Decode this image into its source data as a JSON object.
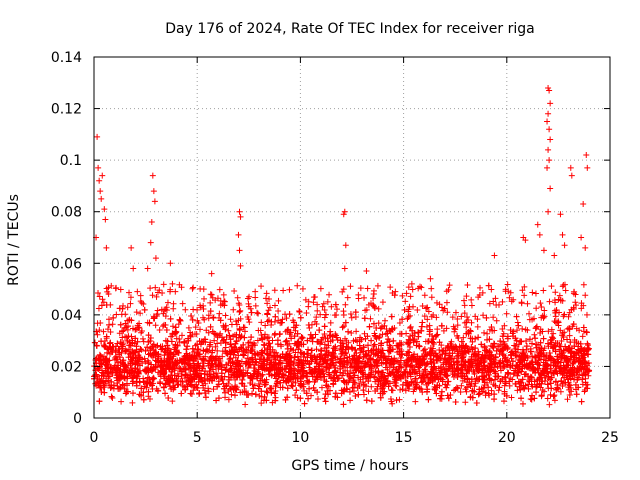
{
  "chart_data": {
    "type": "scatter",
    "title": "Day 176 of 2024, Rate Of TEC Index for receiver riga",
    "xlabel": "GPS time / hours",
    "ylabel": "ROTI / TECUs",
    "xlim": [
      0,
      25
    ],
    "ylim": [
      0,
      0.14
    ],
    "xticks": [
      0,
      5,
      10,
      15,
      20,
      25
    ],
    "xtick_labels": [
      "0",
      "5",
      "10",
      "15",
      "20",
      "25"
    ],
    "yticks": [
      0,
      0.02,
      0.04,
      0.06,
      0.08,
      0.1,
      0.12,
      0.14
    ],
    "ytick_labels": [
      "0",
      "0.02",
      "0.04",
      "0.06",
      "0.08",
      "0.1",
      "0.12",
      "0.14"
    ],
    "grid": true,
    "marker": "+",
    "color": "#ff0000",
    "series": [
      {
        "name": "ROTI",
        "x_range": [
          0,
          24
        ],
        "base_band": [
          0.008,
          0.035
        ],
        "typical": 0.02,
        "outliers": [
          {
            "x": 0.15,
            "y": 0.109
          },
          {
            "x": 0.2,
            "y": 0.097
          },
          {
            "x": 0.25,
            "y": 0.092
          },
          {
            "x": 0.3,
            "y": 0.088
          },
          {
            "x": 0.35,
            "y": 0.085
          },
          {
            "x": 0.4,
            "y": 0.094
          },
          {
            "x": 0.5,
            "y": 0.081
          },
          {
            "x": 0.55,
            "y": 0.077
          },
          {
            "x": 0.1,
            "y": 0.07
          },
          {
            "x": 0.6,
            "y": 0.066
          },
          {
            "x": 1.8,
            "y": 0.066
          },
          {
            "x": 1.9,
            "y": 0.058
          },
          {
            "x": 2.1,
            "y": 0.049
          },
          {
            "x": 2.6,
            "y": 0.058
          },
          {
            "x": 2.75,
            "y": 0.068
          },
          {
            "x": 2.8,
            "y": 0.076
          },
          {
            "x": 2.85,
            "y": 0.094
          },
          {
            "x": 2.9,
            "y": 0.088
          },
          {
            "x": 2.95,
            "y": 0.084
          },
          {
            "x": 3.0,
            "y": 0.062
          },
          {
            "x": 3.7,
            "y": 0.06
          },
          {
            "x": 3.8,
            "y": 0.052
          },
          {
            "x": 5.7,
            "y": 0.056
          },
          {
            "x": 7.05,
            "y": 0.08
          },
          {
            "x": 7.1,
            "y": 0.078
          },
          {
            "x": 7.0,
            "y": 0.071
          },
          {
            "x": 7.05,
            "y": 0.065
          },
          {
            "x": 7.1,
            "y": 0.059
          },
          {
            "x": 12.1,
            "y": 0.079
          },
          {
            "x": 12.15,
            "y": 0.08
          },
          {
            "x": 12.2,
            "y": 0.067
          },
          {
            "x": 12.15,
            "y": 0.058
          },
          {
            "x": 12.1,
            "y": 0.05
          },
          {
            "x": 13.2,
            "y": 0.057
          },
          {
            "x": 14.6,
            "y": 0.049
          },
          {
            "x": 15.4,
            "y": 0.052
          },
          {
            "x": 16.3,
            "y": 0.054
          },
          {
            "x": 19.4,
            "y": 0.063
          },
          {
            "x": 20.8,
            "y": 0.07
          },
          {
            "x": 20.9,
            "y": 0.069
          },
          {
            "x": 21.5,
            "y": 0.075
          },
          {
            "x": 21.6,
            "y": 0.071
          },
          {
            "x": 21.8,
            "y": 0.065
          },
          {
            "x": 22.0,
            "y": 0.128
          },
          {
            "x": 22.05,
            "y": 0.127
          },
          {
            "x": 22.1,
            "y": 0.122
          },
          {
            "x": 22.0,
            "y": 0.118
          },
          {
            "x": 21.95,
            "y": 0.115
          },
          {
            "x": 22.05,
            "y": 0.112
          },
          {
            "x": 22.1,
            "y": 0.108
          },
          {
            "x": 22.0,
            "y": 0.104
          },
          {
            "x": 22.05,
            "y": 0.1
          },
          {
            "x": 21.95,
            "y": 0.097
          },
          {
            "x": 22.1,
            "y": 0.089
          },
          {
            "x": 22.0,
            "y": 0.08
          },
          {
            "x": 22.3,
            "y": 0.063
          },
          {
            "x": 22.6,
            "y": 0.079
          },
          {
            "x": 22.7,
            "y": 0.071
          },
          {
            "x": 22.8,
            "y": 0.067
          },
          {
            "x": 23.1,
            "y": 0.097
          },
          {
            "x": 23.15,
            "y": 0.094
          },
          {
            "x": 23.7,
            "y": 0.083
          },
          {
            "x": 23.85,
            "y": 0.102
          },
          {
            "x": 23.9,
            "y": 0.097
          },
          {
            "x": 23.8,
            "y": 0.066
          },
          {
            "x": 23.6,
            "y": 0.07
          }
        ]
      }
    ]
  }
}
